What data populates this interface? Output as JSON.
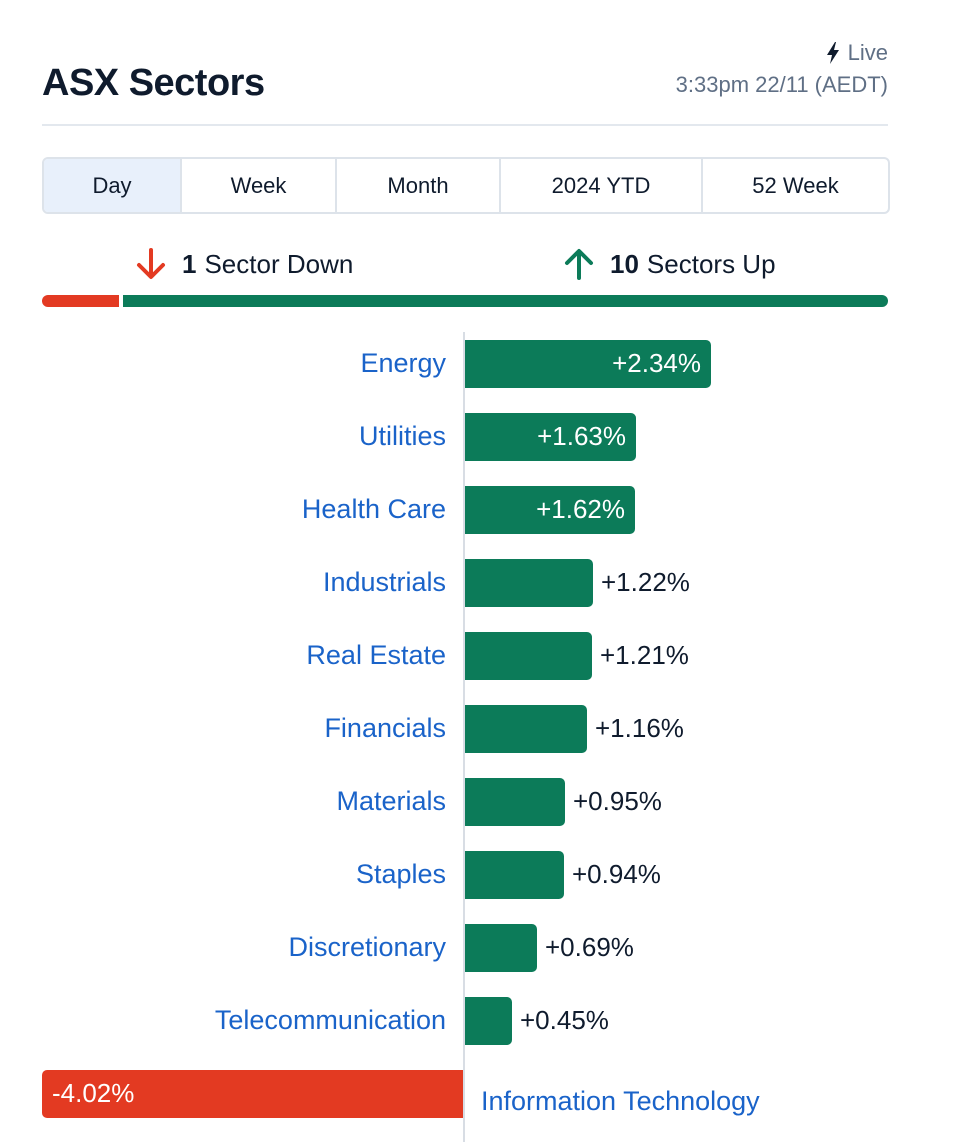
{
  "header": {
    "title": "ASX Sectors",
    "live_label": "Live",
    "timestamp": "3:33pm 22/11 (AEDT)"
  },
  "tabs": [
    {
      "label": "Day",
      "active": true
    },
    {
      "label": "Week",
      "active": false
    },
    {
      "label": "Month",
      "active": false
    },
    {
      "label": "2024 YTD",
      "active": false
    },
    {
      "label": "52 Week",
      "active": false
    }
  ],
  "summary": {
    "down_count": "1",
    "down_label": "Sector Down",
    "up_count": "10",
    "up_label": "Sectors Up"
  },
  "colors": {
    "up": "#0c7b59",
    "down": "#e33a22",
    "link": "#1a63c9"
  },
  "icons": {
    "live": "lightning-bolt-icon",
    "down": "arrow-down-icon",
    "up": "arrow-up-icon"
  },
  "chart_data": {
    "type": "bar",
    "orientation": "horizontal",
    "categories": [
      "Energy",
      "Utilities",
      "Health Care",
      "Industrials",
      "Real Estate",
      "Financials",
      "Materials",
      "Staples",
      "Discretionary",
      "Telecommunication",
      "Information Technology"
    ],
    "values": [
      2.34,
      1.63,
      1.62,
      1.22,
      1.21,
      1.16,
      0.95,
      0.94,
      0.69,
      0.45,
      -4.02
    ],
    "value_labels": [
      "+2.34%",
      "+1.63%",
      "+1.62%",
      "+1.22%",
      "+1.21%",
      "+1.16%",
      "+0.95%",
      "+0.94%",
      "+0.69%",
      "+0.45%",
      "-4.02%"
    ]
  }
}
